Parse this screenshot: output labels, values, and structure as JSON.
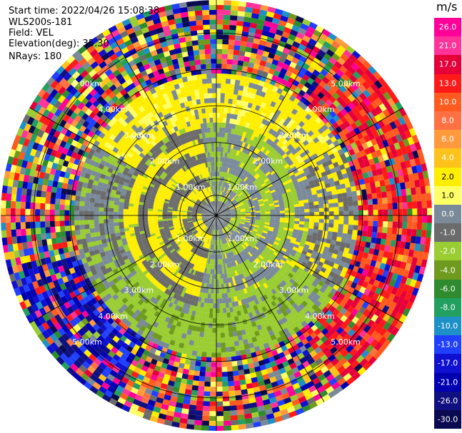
{
  "header": {
    "start_time": "Start time: 2022/04/26 15:08:38",
    "instrument": "WLS200s-181",
    "field": "Field: VEL",
    "elevation": "Elevation(deg): 35.30",
    "nrays": "NRays: 180"
  },
  "chart_data": {
    "type": "heatmap",
    "projection": "polar-ppi",
    "unit_label": "m/s",
    "range_rings_km": [
      1,
      2,
      3,
      4,
      5
    ],
    "ring_labels": [
      "1.00km",
      "2.00km",
      "3.00km",
      "4.00km",
      "5.00km"
    ],
    "max_range_km": 5.9,
    "n_rays": 180,
    "colorbar": {
      "ticks": [
        "26.0",
        "21.0",
        "17.0",
        "13.0",
        "10.0",
        "8.0",
        "6.0",
        "4.0",
        "2.0",
        "1.0",
        "0.0",
        "-1.0",
        "-2.0",
        "-4.0",
        "-6.0",
        "-8.0",
        "-10.0",
        "-13.0",
        "-17.0",
        "-21.0",
        "-26.0",
        "-30.0"
      ],
      "colors": [
        "#ff0099",
        "#ff3399",
        "#e6003a",
        "#ff1a1a",
        "#ff5a1f",
        "#ff7043",
        "#ff9a3c",
        "#ffc21a",
        "#ffee00",
        "#ffff66",
        "#7a8a99",
        "#6b6b6b",
        "#9acd32",
        "#6e9a1e",
        "#2e8b2e",
        "#22a060",
        "#1e90c8",
        "#2040ff",
        "#1010d0",
        "#0000b0",
        "#101080",
        "#0a0a50"
      ]
    }
  }
}
